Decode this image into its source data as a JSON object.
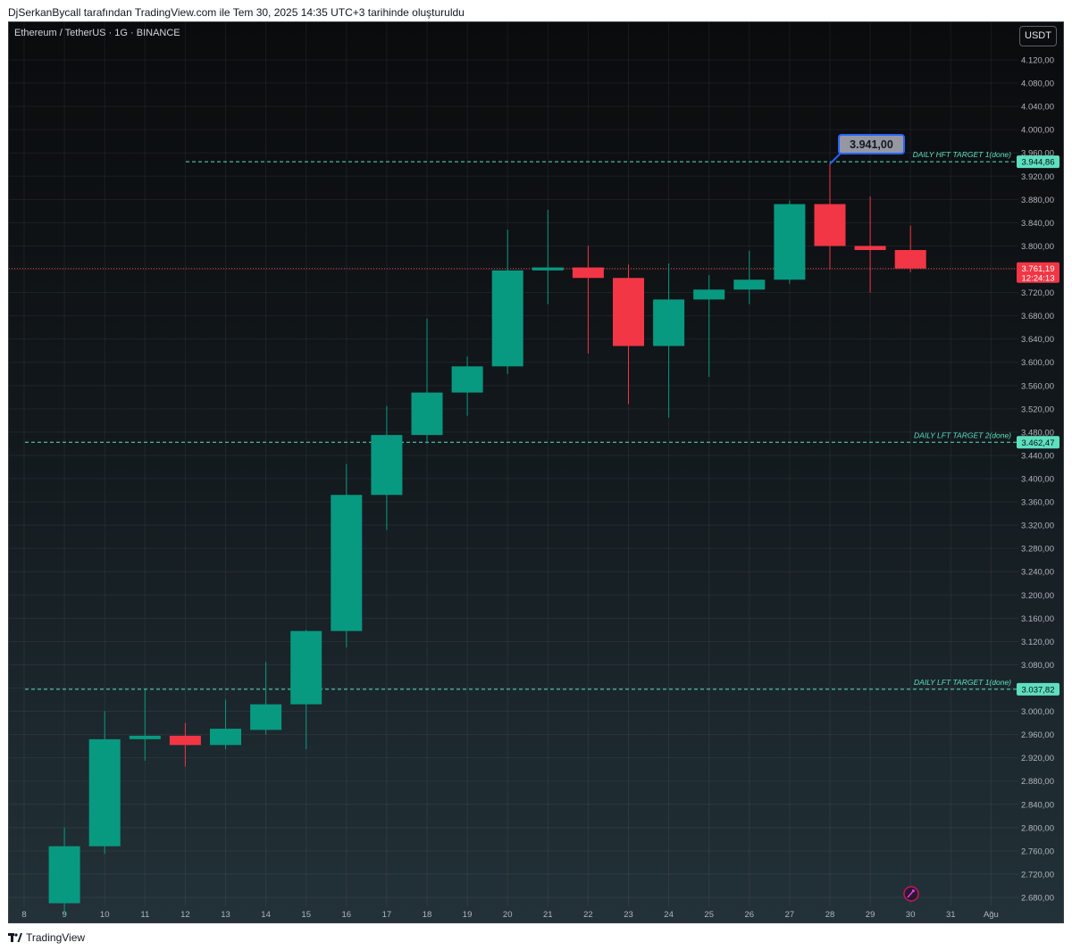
{
  "credit": "DjSerkanBycall tarafından TradingView.com ile Tem 30, 2025 14:35 UTC+3 tarihinde oluşturuldu",
  "symbol_label": "Ethereum / TetherUS · 1G · BINANCE",
  "currency_button": "USDT",
  "brand": "TradingView",
  "colors": {
    "up": "#089981",
    "down": "#f23645",
    "target_line": "#5ee0c0",
    "callout_bg": "#9598a1",
    "callout_border": "#2962ff"
  },
  "chart_data": {
    "type": "candlestick",
    "x_ticks": [
      "8",
      "9",
      "10",
      "11",
      "12",
      "13",
      "14",
      "15",
      "16",
      "17",
      "18",
      "19",
      "20",
      "21",
      "22",
      "23",
      "24",
      "25",
      "26",
      "27",
      "28",
      "29",
      "30",
      "31",
      "Ağu"
    ],
    "y_ticks": [
      "4.120,00",
      "4.080,00",
      "4.040,00",
      "4.000,00",
      "3.960,00",
      "3.920,00",
      "3.880,00",
      "3.840,00",
      "3.800,00",
      "3.760,00",
      "3.720,00",
      "3.680,00",
      "3.640,00",
      "3.600,00",
      "3.560,00",
      "3.520,00",
      "3.480,00",
      "3.440,00",
      "3.400,00",
      "3.360,00",
      "3.320,00",
      "3.280,00",
      "3.240,00",
      "3.200,00",
      "3.160,00",
      "3.120,00",
      "3.080,00",
      "3.040,00",
      "3.000,00",
      "2.960,00",
      "2.920,00",
      "2.880,00",
      "2.840,00",
      "2.800,00",
      "2.760,00",
      "2.720,00",
      "2.680,00"
    ],
    "ylim": [
      2660,
      4150
    ],
    "candles": [
      {
        "day": 9,
        "open": 2670,
        "high": 2800,
        "low": 2650,
        "close": 2768
      },
      {
        "day": 10,
        "open": 2768,
        "high": 3000,
        "low": 2755,
        "close": 2952
      },
      {
        "day": 11,
        "open": 2952,
        "high": 3037,
        "low": 2915,
        "close": 2958
      },
      {
        "day": 12,
        "open": 2958,
        "high": 2980,
        "low": 2905,
        "close": 2942
      },
      {
        "day": 13,
        "open": 2942,
        "high": 3020,
        "low": 2935,
        "close": 2970
      },
      {
        "day": 14,
        "open": 2968,
        "high": 3085,
        "low": 2960,
        "close": 3012
      },
      {
        "day": 15,
        "open": 3012,
        "high": 3140,
        "low": 2935,
        "close": 3138
      },
      {
        "day": 16,
        "open": 3138,
        "high": 3425,
        "low": 3110,
        "close": 3372
      },
      {
        "day": 17,
        "open": 3372,
        "high": 3525,
        "low": 3312,
        "close": 3475
      },
      {
        "day": 18,
        "open": 3475,
        "high": 3675,
        "low": 3460,
        "close": 3548
      },
      {
        "day": 19,
        "open": 3548,
        "high": 3610,
        "low": 3508,
        "close": 3593
      },
      {
        "day": 20,
        "open": 3593,
        "high": 3828,
        "low": 3580,
        "close": 3758
      },
      {
        "day": 21,
        "open": 3758,
        "high": 3862,
        "low": 3700,
        "close": 3763
      },
      {
        "day": 22,
        "open": 3763,
        "high": 3800,
        "low": 3615,
        "close": 3745
      },
      {
        "day": 23,
        "open": 3745,
        "high": 3768,
        "low": 3528,
        "close": 3628
      },
      {
        "day": 24,
        "open": 3628,
        "high": 3770,
        "low": 3505,
        "close": 3708
      },
      {
        "day": 25,
        "open": 3708,
        "high": 3750,
        "low": 3575,
        "close": 3725
      },
      {
        "day": 26,
        "open": 3725,
        "high": 3792,
        "low": 3700,
        "close": 3742
      },
      {
        "day": 27,
        "open": 3742,
        "high": 3878,
        "low": 3735,
        "close": 3872
      },
      {
        "day": 28,
        "open": 3872,
        "high": 3941,
        "low": 3760,
        "close": 3800
      },
      {
        "day": 29,
        "open": 3800,
        "high": 3885,
        "low": 3720,
        "close": 3793
      },
      {
        "day": 30,
        "open": 3793,
        "high": 3835,
        "low": 3755,
        "close": 3761.19
      }
    ],
    "levels": [
      {
        "label": "DAILY HFT TARGET 1(done)",
        "value": 3944.86,
        "value_label": "3.944,86"
      },
      {
        "label": "DAILY LFT TARGET 2(done)",
        "value": 3462.47,
        "value_label": "3.462,47"
      },
      {
        "label": "DAILY LFT TARGET 1(done)",
        "value": 3037.82,
        "value_label": "3.037,82"
      }
    ],
    "current_price": {
      "value": 3761.19,
      "value_label": "3.761,19",
      "countdown": "12:24:13"
    },
    "callout": {
      "value": 3941,
      "label": "3.941,00",
      "day": 28
    },
    "grid": true
  }
}
